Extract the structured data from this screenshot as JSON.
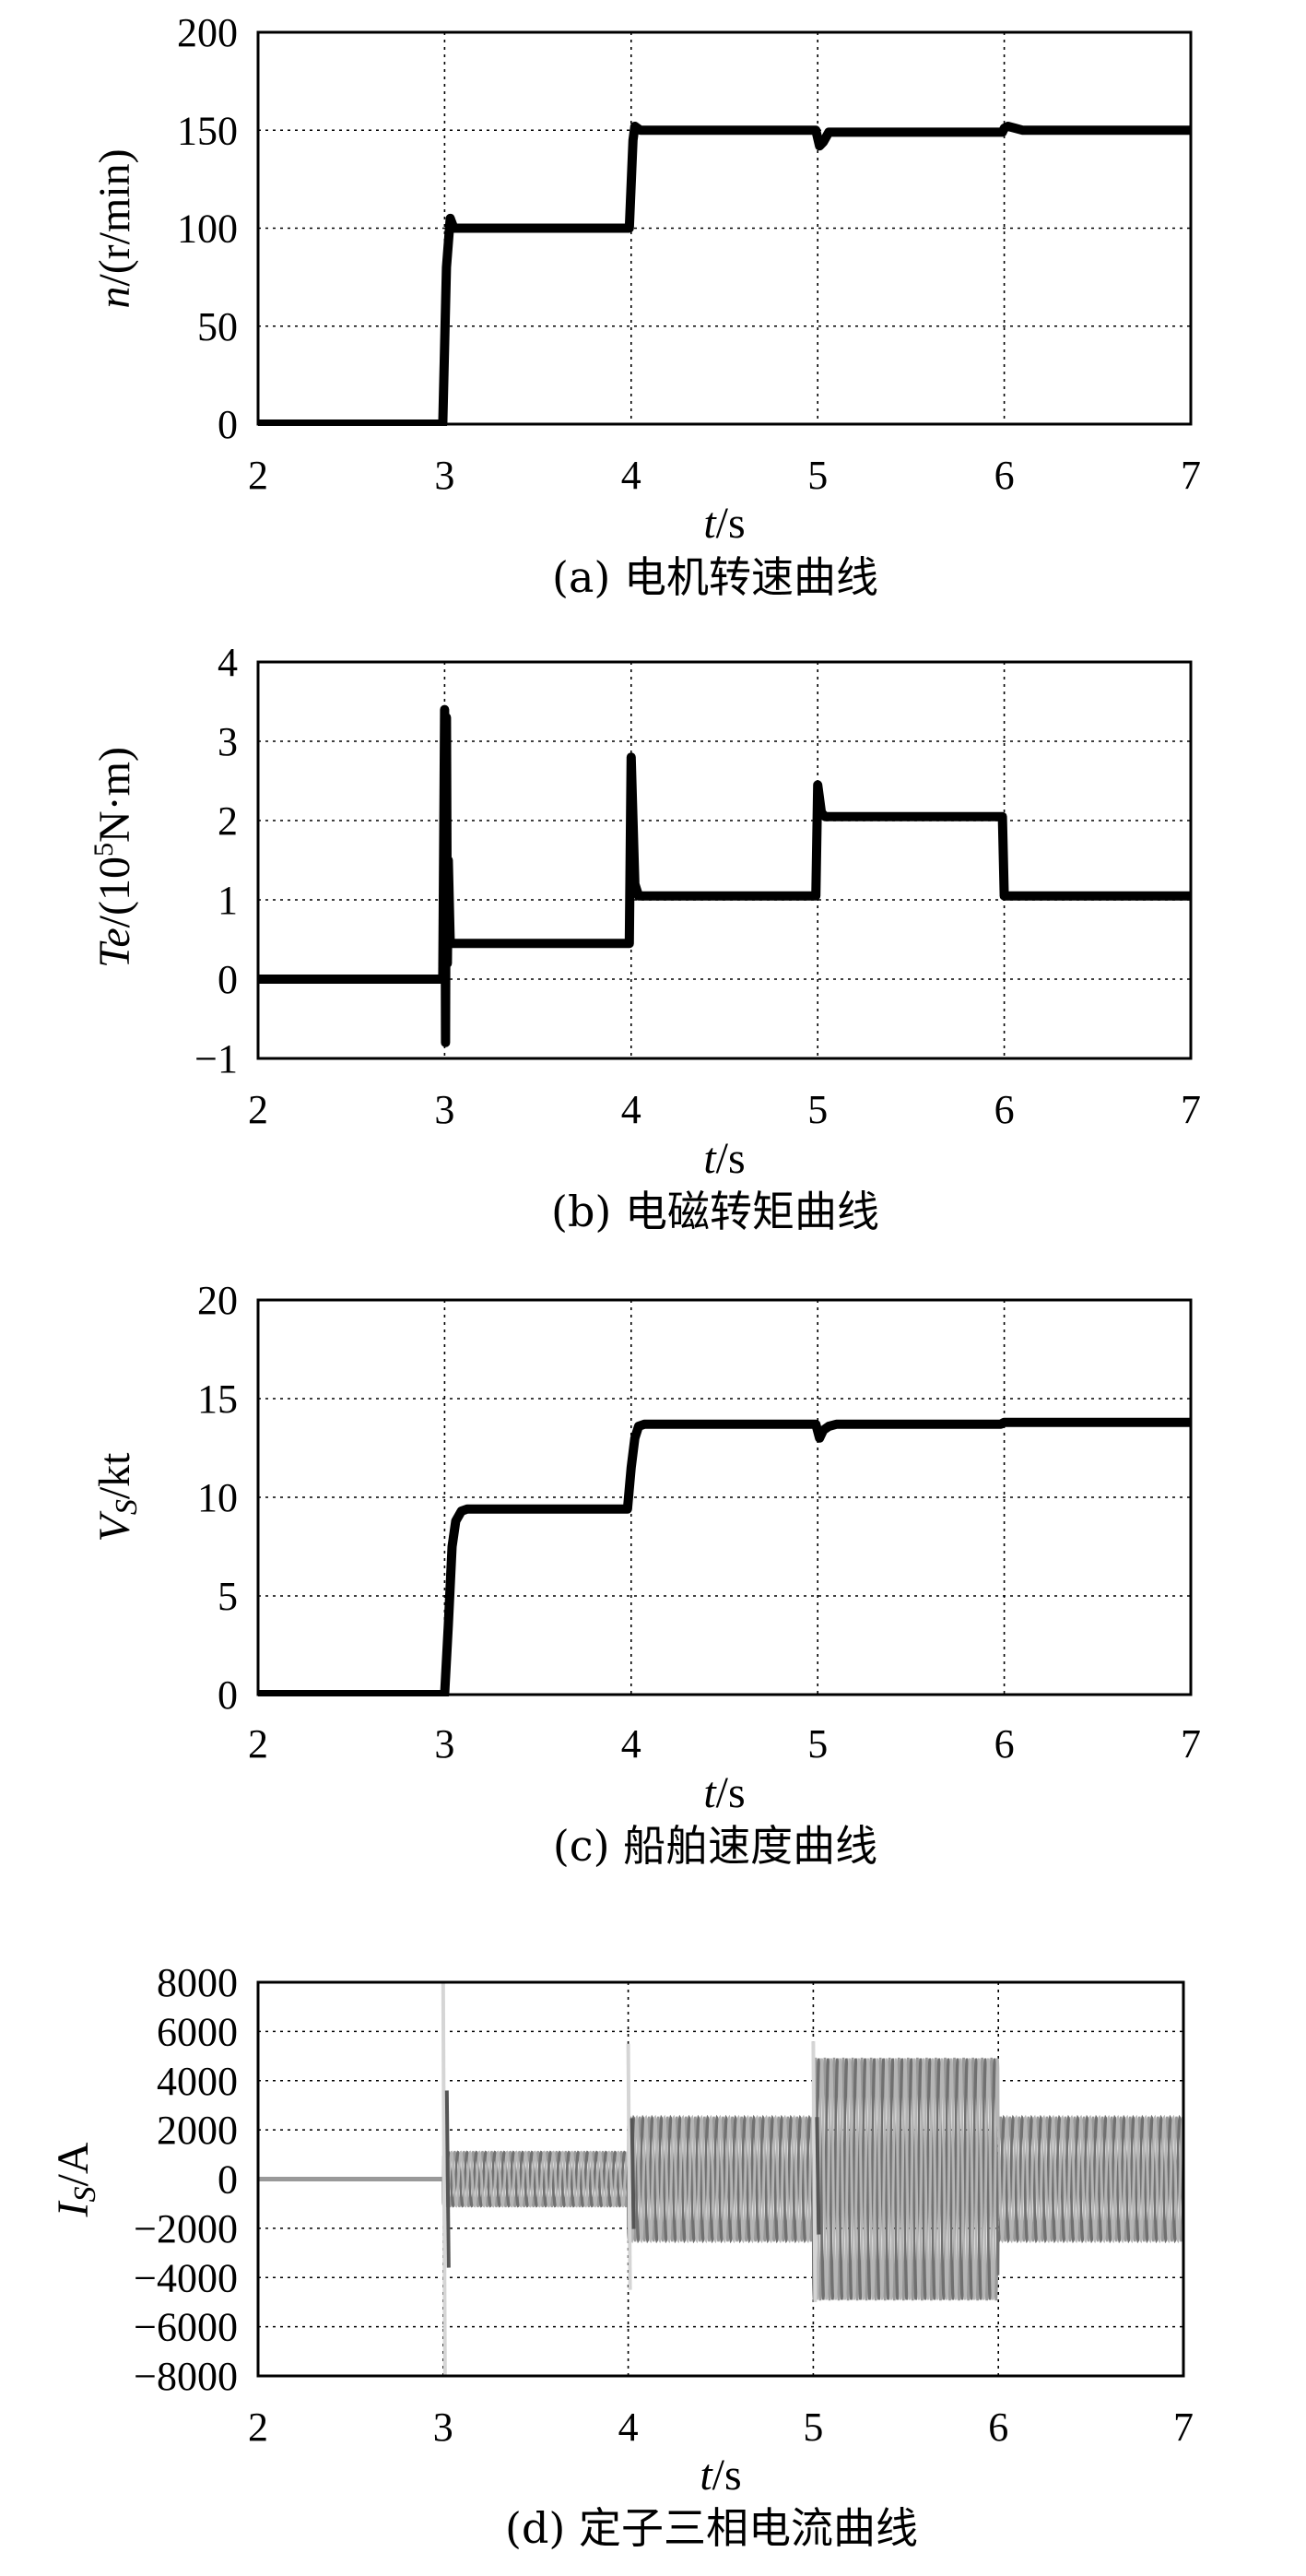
{
  "chart_data": [
    {
      "type": "line",
      "caption": "(a) 电机转速曲线",
      "ylabel_italic": "n",
      "ylabel_rest": "/(r/min)",
      "xlabel_italic": "t",
      "xlabel_rest": "/s",
      "xlim": [
        2,
        7
      ],
      "ylim": [
        0,
        200
      ],
      "xticks": [
        "2",
        "3",
        "4",
        "5",
        "6",
        "7"
      ],
      "yticks": [
        "0",
        "50",
        "100",
        "150",
        "200"
      ],
      "grid": true,
      "series": [
        {
          "color": "#000000",
          "x": [
            2.0,
            2.99,
            3.01,
            3.03,
            3.05,
            3.1,
            3.99,
            4.01,
            4.02,
            4.05,
            4.99,
            5.01,
            5.03,
            5.06,
            5.1,
            5.99,
            6.0,
            6.02,
            6.06,
            6.1,
            7.0
          ],
          "y": [
            0,
            0,
            80,
            105,
            100,
            100,
            100,
            145,
            152,
            150,
            150,
            142,
            144,
            149,
            149,
            149,
            151,
            152,
            151,
            150,
            150
          ]
        }
      ]
    },
    {
      "type": "line",
      "caption": "(b) 电磁转矩曲线",
      "ylabel_italic": "Te",
      "ylabel_pre": "/(10",
      "ylabel_sup": "5",
      "ylabel_post": "N·m)",
      "xlabel_italic": "t",
      "xlabel_rest": "/s",
      "xlim": [
        2,
        7
      ],
      "ylim": [
        -1,
        4
      ],
      "xticks": [
        "2",
        "3",
        "4",
        "5",
        "6",
        "7"
      ],
      "yticks": [
        "−1",
        "0",
        "1",
        "2",
        "3",
        "4"
      ],
      "grid": true,
      "series": [
        {
          "color": "#000000",
          "x": [
            2.0,
            2.99,
            3.0,
            3.005,
            3.01,
            3.015,
            3.02,
            3.03,
            3.05,
            3.99,
            4.0,
            4.02,
            4.04,
            4.99,
            5.0,
            5.02,
            5.04,
            5.99,
            6.0,
            6.02,
            7.0
          ],
          "y": [
            0,
            0,
            3.4,
            -0.8,
            3.3,
            0.2,
            1.5,
            0.45,
            0.45,
            0.45,
            2.8,
            1.2,
            1.05,
            1.05,
            2.45,
            2.1,
            2.05,
            2.05,
            1.05,
            1.05,
            1.05
          ]
        }
      ]
    },
    {
      "type": "line",
      "caption": "(c) 船舶速度曲线",
      "ylabel_italic": "V",
      "ylabel_sub": "S",
      "ylabel_rest": "/kt",
      "xlabel_italic": "t",
      "xlabel_rest": "/s",
      "xlim": [
        2,
        7
      ],
      "ylim": [
        0,
        20
      ],
      "xticks": [
        "2",
        "3",
        "4",
        "5",
        "6",
        "7"
      ],
      "yticks": [
        "0",
        "5",
        "10",
        "15",
        "20"
      ],
      "grid": true,
      "series": [
        {
          "color": "#000000",
          "x": [
            2.0,
            3.0,
            3.02,
            3.04,
            3.06,
            3.09,
            3.12,
            3.2,
            3.98,
            4.0,
            4.02,
            4.04,
            4.07,
            4.1,
            4.99,
            5.01,
            5.03,
            5.06,
            5.1,
            5.98,
            6.0,
            6.03,
            6.08,
            7.0
          ],
          "y": [
            0,
            0,
            3.5,
            7.5,
            8.8,
            9.3,
            9.4,
            9.4,
            9.4,
            11.5,
            13.0,
            13.6,
            13.7,
            13.7,
            13.7,
            13.0,
            13.4,
            13.6,
            13.7,
            13.7,
            13.8,
            13.8,
            13.8,
            13.8
          ]
        }
      ]
    },
    {
      "type": "line",
      "caption": "(d) 定子三相电流曲线",
      "ylabel_italic": "I",
      "ylabel_sub": "S",
      "ylabel_rest": "/A",
      "xlabel_italic": "t",
      "xlabel_rest": "/s",
      "xlim": [
        2,
        7
      ],
      "ylim": [
        -8000,
        8000
      ],
      "xticks": [
        "2",
        "3",
        "4",
        "5",
        "6",
        "7"
      ],
      "yticks": [
        "−8000",
        "−6000",
        "−4000",
        "−2000",
        "0",
        "2000",
        "4000",
        "6000",
        "8000"
      ],
      "grid": true,
      "series_note": "three-phase sinusoidal current; envelope amplitude per interval",
      "envelope": {
        "x_segments": [
          [
            2,
            3
          ],
          [
            3,
            4
          ],
          [
            4,
            5
          ],
          [
            5,
            6
          ],
          [
            6,
            7
          ]
        ],
        "amplitude": [
          0,
          1100,
          2500,
          4900,
          2500
        ],
        "spikes": [
          {
            "x": 3.0,
            "max": 8000,
            "min": -8000
          },
          {
            "x": 4.0,
            "max": 5500,
            "min": -4500
          },
          {
            "x": 5.0,
            "max": 5600,
            "min": -5000
          }
        ]
      },
      "phase_colors": [
        "#999999",
        "#707070",
        "#b5b5b5"
      ]
    }
  ]
}
